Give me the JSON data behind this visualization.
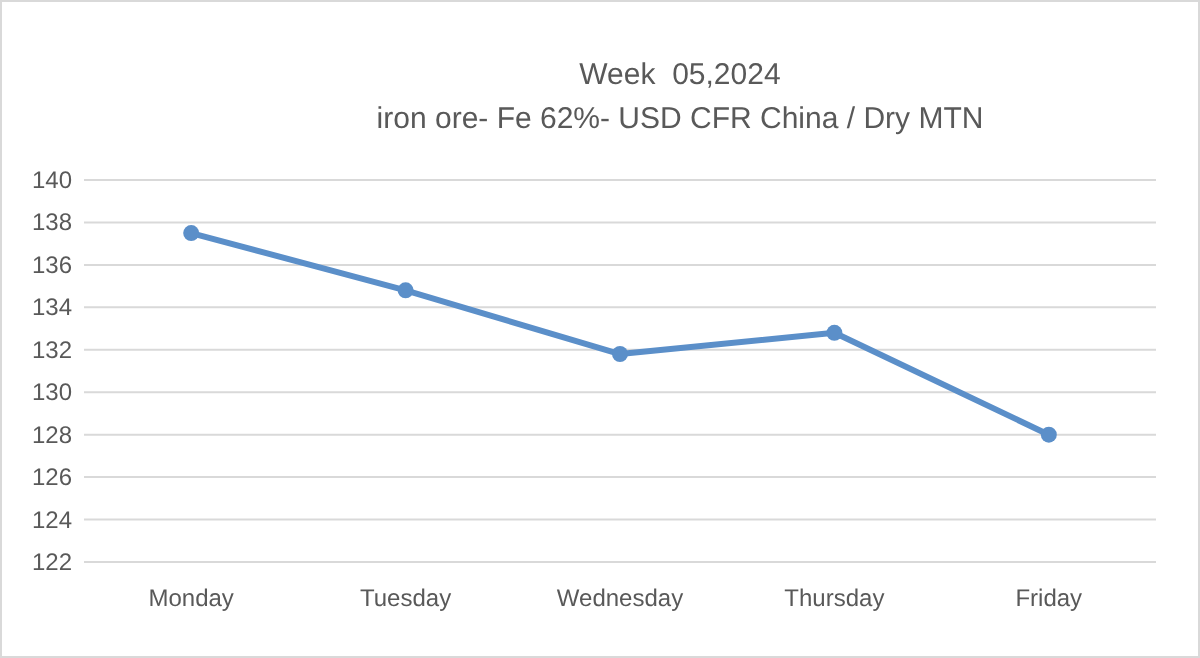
{
  "chart_data": {
    "type": "line",
    "title": "Week  05,2024",
    "subtitle": "iron ore- Fe 62%- USD CFR China / Dry MTN",
    "categories": [
      "Monday",
      "Tuesday",
      "Wednesday",
      "Thursday",
      "Friday"
    ],
    "series": [
      {
        "color": "#5b8fc9",
        "values": [
          137.5,
          134.8,
          131.8,
          132.8,
          128
        ]
      }
    ],
    "ylim": [
      122,
      140
    ],
    "yticks": [
      122,
      124,
      126,
      128,
      130,
      132,
      134,
      136,
      138,
      140
    ],
    "grid": "y",
    "marker": "circle",
    "line_style": "solid"
  }
}
